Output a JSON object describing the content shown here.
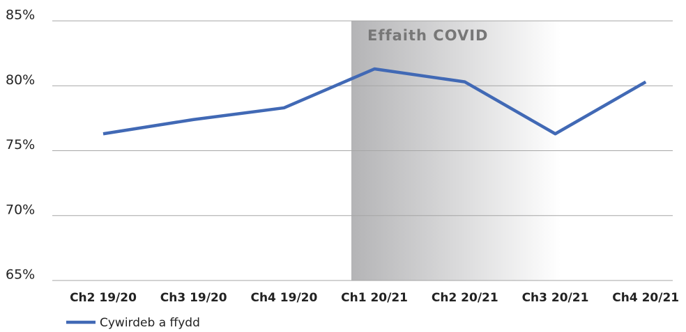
{
  "chart_data": {
    "type": "line",
    "annotation": "Effaith COVID",
    "categories": [
      "Ch2 19/20",
      "Ch3 19/20",
      "Ch4 19/20",
      "Ch1 20/21",
      "Ch2 20/21",
      "Ch3 20/21",
      "Ch4 20/21"
    ],
    "series": [
      {
        "name": "Cywirdeb a ffydd",
        "color": "#4169b5",
        "values": [
          76.3,
          77.4,
          78.3,
          81.3,
          80.3,
          76.3,
          80.3
        ]
      }
    ],
    "ylim": [
      65,
      85
    ],
    "yticks": [
      {
        "value": 65,
        "label": "65%"
      },
      {
        "value": 70,
        "label": "70%"
      },
      {
        "value": 75,
        "label": "75%"
      },
      {
        "value": 80,
        "label": "80%"
      },
      {
        "value": 85,
        "label": "85%"
      }
    ],
    "grid": true
  }
}
